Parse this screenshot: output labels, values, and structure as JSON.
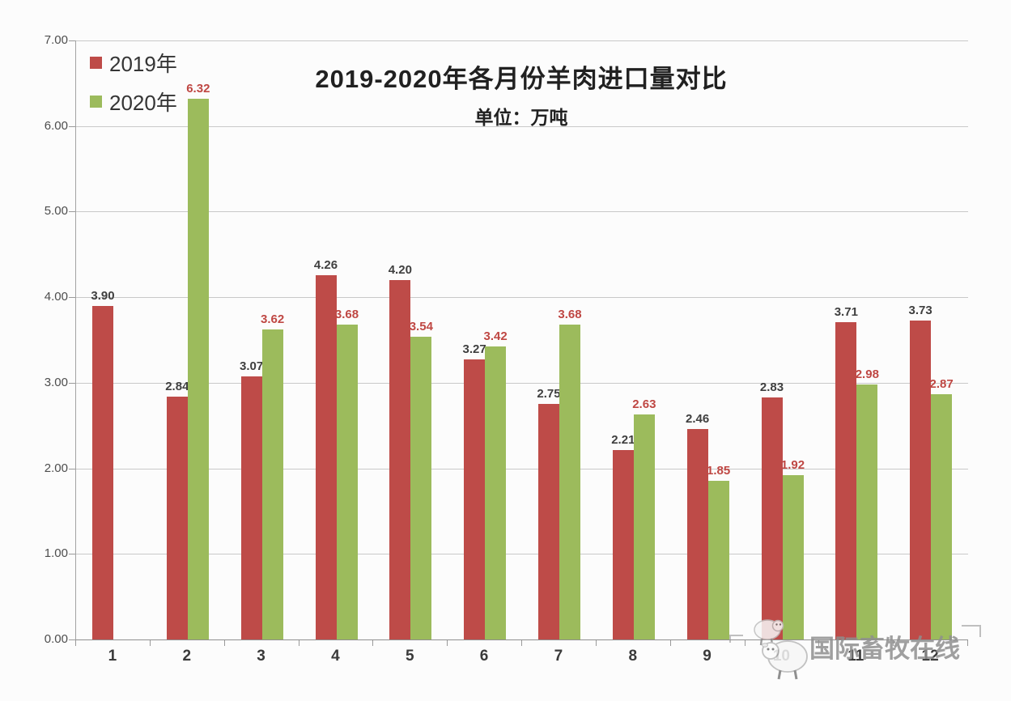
{
  "chart_data": {
    "type": "bar",
    "title": "2019-2020年各月份羊肉进口量对比",
    "subtitle": "单位：万吨",
    "unit": "万吨",
    "categories": [
      "1",
      "2",
      "3",
      "4",
      "5",
      "6",
      "7",
      "8",
      "9",
      "10",
      "11",
      "12"
    ],
    "series": [
      {
        "name": "2019年",
        "color": "#be4b48",
        "label_color": "#3f3f3f",
        "values": [
          3.9,
          2.84,
          3.07,
          4.26,
          4.2,
          3.27,
          2.75,
          2.21,
          2.46,
          2.83,
          3.71,
          3.73
        ]
      },
      {
        "name": "2020年",
        "color": "#9cbb5c",
        "label_color": "#bf4743",
        "values": [
          null,
          6.32,
          3.62,
          3.68,
          3.54,
          3.42,
          3.68,
          2.63,
          1.85,
          1.92,
          2.98,
          2.87
        ]
      }
    ],
    "ylim": [
      0,
      7
    ],
    "ytick_labels": [
      "0.00",
      "1.00",
      "2.00",
      "3.00",
      "4.00",
      "5.00",
      "6.00",
      "7.00"
    ],
    "grid": true,
    "legend_position": "top-left",
    "data_labels": true
  },
  "watermark": {
    "text": "国际畜牧在线"
  }
}
